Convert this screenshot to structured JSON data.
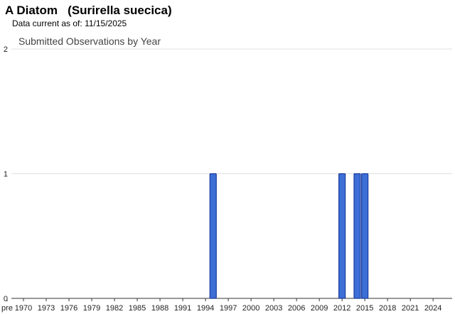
{
  "header": {
    "common_name": "A Diatom",
    "scientific_name": "(Surirella suecica)",
    "data_current_label": "Data current as of:",
    "data_current_date": "11/15/2025"
  },
  "chart_data": {
    "type": "bar",
    "title": "Submitted Observations by Year",
    "xlabel": "",
    "ylabel": "",
    "ylim": [
      0,
      2
    ],
    "yticks": [
      0,
      1,
      2
    ],
    "grid": true,
    "legend": "none",
    "x_tick_labels": [
      "pre",
      "1970",
      "1973",
      "1976",
      "1979",
      "1982",
      "1985",
      "1988",
      "1991",
      "1994",
      "1997",
      "2000",
      "2003",
      "2006",
      "2009",
      "2012",
      "2015",
      "2018",
      "2021",
      "2024"
    ],
    "categories": [
      1995,
      2012,
      2014,
      2015
    ],
    "values": [
      1,
      1,
      1,
      1
    ],
    "bar_color": "#3d6fd6",
    "bar_edge_color": "#1a3c9c"
  }
}
